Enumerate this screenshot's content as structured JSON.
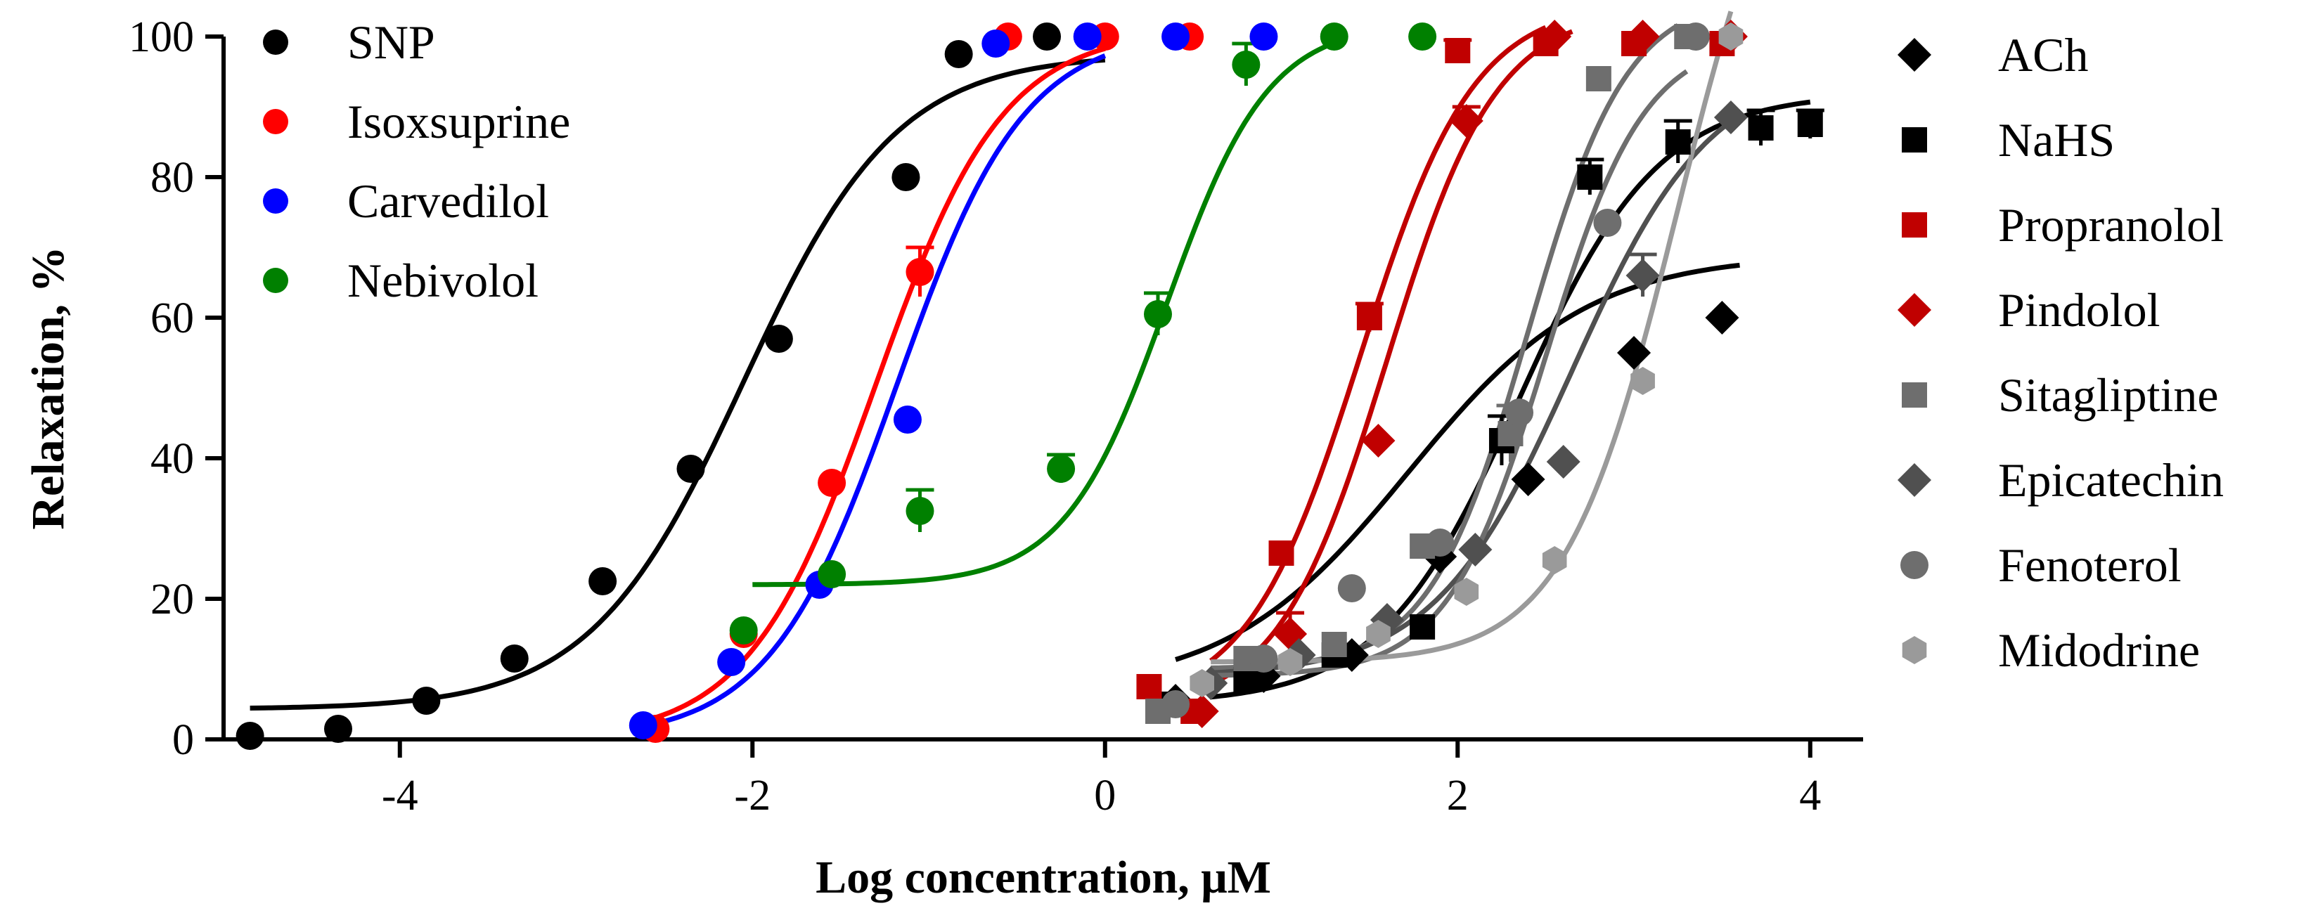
{
  "chart_data": {
    "type": "scatter",
    "title": "",
    "xlabel": "Log concentration, μM",
    "ylabel": "Relaxation, %",
    "xlim": [
      -5,
      4.3
    ],
    "ylim": [
      0,
      100
    ],
    "xticks": [
      -4,
      -2,
      0,
      2,
      4
    ],
    "xtick_labels": [
      "-4",
      "-2",
      "0",
      "2",
      "4"
    ],
    "yticks": [
      0,
      20,
      40,
      60,
      80,
      100
    ],
    "ytick_labels": [
      "0",
      "20",
      "40",
      "60",
      "80",
      "100"
    ],
    "grid": false,
    "legend_left": [
      "SNP",
      "Isoxsuprine",
      "Carvedilol",
      "Nebivolol"
    ],
    "legend_right": [
      "ACh",
      "NaHS",
      "Propranolol",
      "Pindolol",
      "Sitagliptine",
      "Epicatechin",
      "Fenoterol",
      "Midodrine"
    ],
    "series": [
      {
        "name": "SNP",
        "color": "#000000",
        "marker": "circle",
        "x": [
          -4.85,
          -4.35,
          -3.85,
          -3.35,
          -2.85,
          -2.35,
          -1.85,
          -1.13,
          -0.83,
          -0.33
        ],
        "y": [
          0.5,
          1.5,
          5.5,
          11.5,
          22.5,
          38.5,
          57,
          80,
          97.5,
          100
        ],
        "err": [
          0,
          0,
          0,
          0,
          0,
          0,
          0,
          0,
          0,
          0
        ],
        "fit": {
          "bottom": 4.3,
          "top": 97.5,
          "ec50": -2.05,
          "hill": 1.0,
          "from": -4.85,
          "to": 0.0
        }
      },
      {
        "name": "Isoxsuprine",
        "color": "#ff0000",
        "marker": "circle",
        "x": [
          -2.55,
          -2.05,
          -1.55,
          -1.05,
          -0.55,
          0.0,
          0.48
        ],
        "y": [
          1.5,
          15,
          36.5,
          66.5,
          100,
          100,
          100
        ],
        "err": [
          0,
          0,
          0,
          3.5,
          0,
          0,
          0
        ],
        "fit": {
          "bottom": 0,
          "top": 101,
          "ec50": -1.3,
          "hill": 1.2,
          "from": -2.55,
          "to": 0.0
        }
      },
      {
        "name": "Carvedilol",
        "color": "#0000ff",
        "marker": "circle",
        "x": [
          -2.62,
          -2.12,
          -1.62,
          -1.12,
          -0.62,
          -0.1,
          0.4,
          0.9
        ],
        "y": [
          2,
          11,
          22,
          45.5,
          99,
          100,
          100,
          100
        ],
        "err": [
          0,
          0,
          0,
          0,
          0,
          0,
          0,
          0
        ],
        "fit": {
          "bottom": 0,
          "top": 101,
          "ec50": -1.18,
          "hill": 1.2,
          "from": -2.6,
          "to": 0.0
        }
      },
      {
        "name": "Nebivolol",
        "color": "#008000",
        "marker": "circle",
        "x": [
          -2.05,
          -1.55,
          -1.05,
          -0.25,
          0.3,
          0.8,
          1.3,
          1.8
        ],
        "y": [
          15.5,
          23.5,
          32.5,
          38.5,
          60.5,
          96,
          100,
          100
        ],
        "err": [
          0,
          0,
          3,
          2,
          3,
          3,
          0,
          0
        ],
        "fit": {
          "bottom": 22,
          "top": 102,
          "ec50": 0.35,
          "hill": 1.5,
          "from": -2.0,
          "to": 1.35
        }
      },
      {
        "name": "ACh",
        "color": "#000000",
        "marker": "diamond",
        "x": [
          -2.6,
          -2.1,
          -1.6,
          -1.1,
          -0.6,
          0.0,
          0.5
        ],
        "y": [
          5.5,
          9,
          12,
          26,
          37,
          55,
          60
        ],
        "x_shift": 3.0,
        "err": [
          0,
          0,
          0,
          0,
          0,
          0,
          0
        ],
        "fit": {
          "bottom": 7,
          "top": 69,
          "ec50": 1.72,
          "hill": 0.85,
          "from": 0.4,
          "to": 3.6
        }
      },
      {
        "name": "NaHS",
        "color": "#000000",
        "marker": "square",
        "x": [
          0.3,
          0.8,
          1.3,
          1.8,
          2.25,
          2.75,
          3.25,
          3.72,
          4.0
        ],
        "y": [
          5,
          8.5,
          12,
          16,
          42.5,
          80,
          85,
          87,
          87.5
        ],
        "err": [
          0,
          0,
          0,
          0,
          3.5,
          2.5,
          3,
          2.5,
          2
        ],
        "fit": {
          "bottom": 5,
          "top": 92,
          "ec50": 2.35,
          "hill": 1.1,
          "from": 0.6,
          "to": 4.0
        }
      },
      {
        "name": "Propranolol",
        "color": "#c00000",
        "marker": "square",
        "x": [
          0.25,
          0.5,
          1.0,
          1.5,
          2.0,
          2.5,
          3.0,
          3.5
        ],
        "y": [
          7.5,
          4,
          26.5,
          60,
          98,
          99,
          99,
          99
        ],
        "err": [
          0,
          0,
          0,
          2,
          1.5,
          0,
          0,
          0
        ],
        "fit": {
          "bottom": 4.5,
          "top": 105,
          "ec50": 1.45,
          "hill": 1.35,
          "from": 0.6,
          "to": 2.5
        }
      },
      {
        "name": "Pindolol",
        "color": "#c00000",
        "marker": "diamond",
        "x": [
          0.55,
          1.05,
          1.55,
          2.05,
          2.55,
          3.05,
          3.55
        ],
        "y": [
          4,
          15,
          42.5,
          88,
          100,
          100,
          100
        ],
        "err": [
          0,
          3,
          0,
          2,
          0,
          0,
          0
        ],
        "fit": {
          "bottom": 4,
          "top": 104,
          "ec50": 1.6,
          "hill": 1.4,
          "from": 0.6,
          "to": 2.65
        }
      },
      {
        "name": "Sitagliptine",
        "color": "#6e6e6e",
        "marker": "square",
        "x": [
          0.3,
          0.8,
          1.3,
          1.8,
          2.3,
          2.8,
          3.3
        ],
        "y": [
          4,
          11.5,
          13.5,
          27.5,
          43.5,
          94,
          100
        ],
        "err": [
          0,
          0,
          0,
          0,
          4,
          0,
          0
        ],
        "fit": {
          "bottom": 10,
          "top": 106,
          "ec50": 2.4,
          "hill": 1.55,
          "from": 0.6,
          "to": 3.25
        }
      },
      {
        "name": "Epicatechin",
        "color": "#505050",
        "marker": "diamond",
        "x": [
          0.6,
          1.1,
          1.6,
          2.1,
          2.6,
          3.05,
          3.55
        ],
        "y": [
          8,
          12,
          17,
          27,
          39.5,
          66,
          88.5
        ],
        "err": [
          0,
          0,
          0,
          0,
          0,
          3,
          0
        ],
        "fit": {
          "bottom": 9,
          "top": 96,
          "ec50": 2.65,
          "hill": 1.1,
          "from": 0.6,
          "to": 3.55
        }
      },
      {
        "name": "Fenoterol",
        "color": "#6e6e6e",
        "marker": "circle",
        "x": [
          0.4,
          0.9,
          1.4,
          1.9,
          2.35,
          2.85,
          3.35
        ],
        "y": [
          5,
          11.5,
          21.5,
          28,
          46.5,
          73.5,
          100
        ],
        "err": [
          0,
          0,
          0,
          0,
          0,
          0,
          0
        ],
        "fit": {
          "bottom": 9,
          "top": 100,
          "ec50": 2.5,
          "hill": 1.55,
          "from": 0.6,
          "to": 3.3
        }
      },
      {
        "name": "Midodrine",
        "color": "#9a9a9a",
        "marker": "hexagon",
        "x": [
          0.55,
          1.05,
          1.55,
          2.05,
          2.55,
          3.05,
          3.55
        ],
        "y": [
          8,
          11,
          15,
          21,
          25.5,
          51,
          100
        ],
        "err": [
          0,
          0,
          0,
          0,
          0,
          0,
          0
        ],
        "fit": {
          "bottom": 11,
          "top": 140,
          "ec50": 3.25,
          "hill": 1.35,
          "from": 0.6,
          "to": 3.55
        }
      }
    ]
  }
}
